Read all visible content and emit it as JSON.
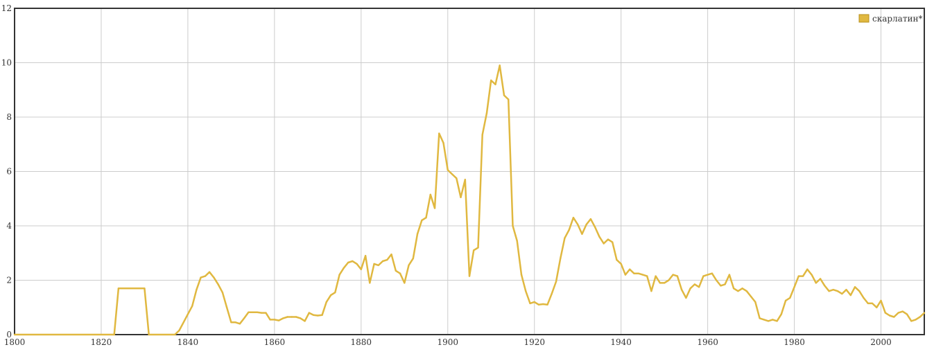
{
  "chart_data": {
    "type": "line",
    "title": "",
    "xlabel": "",
    "ylabel": "",
    "xlim": [
      1800,
      2010
    ],
    "ylim": [
      0,
      12
    ],
    "x_ticks": [
      1800,
      1820,
      1840,
      1860,
      1880,
      1900,
      1920,
      1940,
      1960,
      1980,
      2000
    ],
    "y_ticks": [
      0,
      2,
      4,
      6,
      8,
      10,
      12
    ],
    "grid": true,
    "legend_position": "top-right",
    "series": [
      {
        "name": "скарлатин*",
        "color": "#e0b840",
        "points": [
          [
            1800,
            0
          ],
          [
            1823,
            0
          ],
          [
            1824,
            1.7
          ],
          [
            1830,
            1.7
          ],
          [
            1831,
            0
          ],
          [
            1837,
            0
          ],
          [
            1838,
            0.15
          ],
          [
            1839,
            0.45
          ],
          [
            1840,
            0.75
          ],
          [
            1841,
            1.05
          ],
          [
            1842,
            1.65
          ],
          [
            1843,
            2.1
          ],
          [
            1844,
            2.15
          ],
          [
            1845,
            2.3
          ],
          [
            1846,
            2.1
          ],
          [
            1847,
            1.85
          ],
          [
            1848,
            1.55
          ],
          [
            1849,
            1.0
          ],
          [
            1850,
            0.45
          ],
          [
            1851,
            0.45
          ],
          [
            1852,
            0.4
          ],
          [
            1853,
            0.6
          ],
          [
            1854,
            0.82
          ],
          [
            1855,
            0.82
          ],
          [
            1856,
            0.82
          ],
          [
            1857,
            0.8
          ],
          [
            1858,
            0.8
          ],
          [
            1859,
            0.55
          ],
          [
            1860,
            0.55
          ],
          [
            1861,
            0.52
          ],
          [
            1862,
            0.6
          ],
          [
            1863,
            0.65
          ],
          [
            1864,
            0.65
          ],
          [
            1865,
            0.65
          ],
          [
            1866,
            0.6
          ],
          [
            1867,
            0.5
          ],
          [
            1868,
            0.8
          ],
          [
            1869,
            0.72
          ],
          [
            1870,
            0.7
          ],
          [
            1871,
            0.72
          ],
          [
            1872,
            1.2
          ],
          [
            1873,
            1.45
          ],
          [
            1874,
            1.55
          ],
          [
            1875,
            2.2
          ],
          [
            1876,
            2.45
          ],
          [
            1877,
            2.65
          ],
          [
            1878,
            2.7
          ],
          [
            1879,
            2.6
          ],
          [
            1880,
            2.4
          ],
          [
            1881,
            2.9
          ],
          [
            1882,
            1.9
          ],
          [
            1883,
            2.6
          ],
          [
            1884,
            2.55
          ],
          [
            1885,
            2.7
          ],
          [
            1886,
            2.75
          ],
          [
            1887,
            2.95
          ],
          [
            1888,
            2.35
          ],
          [
            1889,
            2.25
          ],
          [
            1890,
            1.9
          ],
          [
            1891,
            2.55
          ],
          [
            1892,
            2.8
          ],
          [
            1893,
            3.7
          ],
          [
            1894,
            4.2
          ],
          [
            1895,
            4.3
          ],
          [
            1896,
            5.15
          ],
          [
            1897,
            4.65
          ],
          [
            1898,
            7.4
          ],
          [
            1899,
            7.05
          ],
          [
            1900,
            6.05
          ],
          [
            1901,
            5.9
          ],
          [
            1902,
            5.75
          ],
          [
            1903,
            5.05
          ],
          [
            1904,
            5.7
          ],
          [
            1905,
            2.15
          ],
          [
            1906,
            3.1
          ],
          [
            1907,
            3.2
          ],
          [
            1908,
            7.35
          ],
          [
            1909,
            8.15
          ],
          [
            1910,
            9.35
          ],
          [
            1911,
            9.2
          ],
          [
            1912,
            9.9
          ],
          [
            1913,
            8.8
          ],
          [
            1914,
            8.65
          ],
          [
            1915,
            4.0
          ],
          [
            1916,
            3.45
          ],
          [
            1917,
            2.2
          ],
          [
            1918,
            1.6
          ],
          [
            1919,
            1.15
          ],
          [
            1920,
            1.2
          ],
          [
            1921,
            1.1
          ],
          [
            1922,
            1.12
          ],
          [
            1923,
            1.1
          ],
          [
            1924,
            1.5
          ],
          [
            1925,
            1.95
          ],
          [
            1926,
            2.8
          ],
          [
            1927,
            3.55
          ],
          [
            1928,
            3.85
          ],
          [
            1929,
            4.3
          ],
          [
            1930,
            4.05
          ],
          [
            1931,
            3.7
          ],
          [
            1932,
            4.05
          ],
          [
            1933,
            4.25
          ],
          [
            1934,
            3.95
          ],
          [
            1935,
            3.6
          ],
          [
            1936,
            3.35
          ],
          [
            1937,
            3.5
          ],
          [
            1938,
            3.4
          ],
          [
            1939,
            2.75
          ],
          [
            1940,
            2.6
          ],
          [
            1941,
            2.2
          ],
          [
            1942,
            2.4
          ],
          [
            1943,
            2.25
          ],
          [
            1944,
            2.25
          ],
          [
            1945,
            2.2
          ],
          [
            1946,
            2.15
          ],
          [
            1947,
            1.6
          ],
          [
            1948,
            2.15
          ],
          [
            1949,
            1.9
          ],
          [
            1950,
            1.9
          ],
          [
            1951,
            2.0
          ],
          [
            1952,
            2.2
          ],
          [
            1953,
            2.15
          ],
          [
            1954,
            1.65
          ],
          [
            1955,
            1.35
          ],
          [
            1956,
            1.7
          ],
          [
            1957,
            1.85
          ],
          [
            1958,
            1.75
          ],
          [
            1959,
            2.15
          ],
          [
            1960,
            2.2
          ],
          [
            1961,
            2.25
          ],
          [
            1962,
            2.0
          ],
          [
            1963,
            1.8
          ],
          [
            1964,
            1.85
          ],
          [
            1965,
            2.2
          ],
          [
            1966,
            1.7
          ],
          [
            1967,
            1.6
          ],
          [
            1968,
            1.7
          ],
          [
            1969,
            1.6
          ],
          [
            1970,
            1.4
          ],
          [
            1971,
            1.2
          ],
          [
            1972,
            0.6
          ],
          [
            1973,
            0.55
          ],
          [
            1974,
            0.5
          ],
          [
            1975,
            0.55
          ],
          [
            1976,
            0.5
          ],
          [
            1977,
            0.75
          ],
          [
            1978,
            1.25
          ],
          [
            1979,
            1.35
          ],
          [
            1980,
            1.75
          ],
          [
            1981,
            2.15
          ],
          [
            1982,
            2.15
          ],
          [
            1983,
            2.4
          ],
          [
            1984,
            2.2
          ],
          [
            1985,
            1.9
          ],
          [
            1986,
            2.05
          ],
          [
            1987,
            1.8
          ],
          [
            1988,
            1.6
          ],
          [
            1989,
            1.65
          ],
          [
            1990,
            1.6
          ],
          [
            1991,
            1.5
          ],
          [
            1992,
            1.65
          ],
          [
            1993,
            1.45
          ],
          [
            1994,
            1.75
          ],
          [
            1995,
            1.6
          ],
          [
            1996,
            1.35
          ],
          [
            1997,
            1.15
          ],
          [
            1998,
            1.15
          ],
          [
            1999,
            1.0
          ],
          [
            2000,
            1.25
          ],
          [
            2001,
            0.8
          ],
          [
            2002,
            0.7
          ],
          [
            2003,
            0.65
          ],
          [
            2004,
            0.8
          ],
          [
            2005,
            0.85
          ],
          [
            2006,
            0.75
          ],
          [
            2007,
            0.5
          ],
          [
            2008,
            0.55
          ],
          [
            2009,
            0.65
          ],
          [
            2010,
            0.8
          ]
        ]
      }
    ]
  }
}
